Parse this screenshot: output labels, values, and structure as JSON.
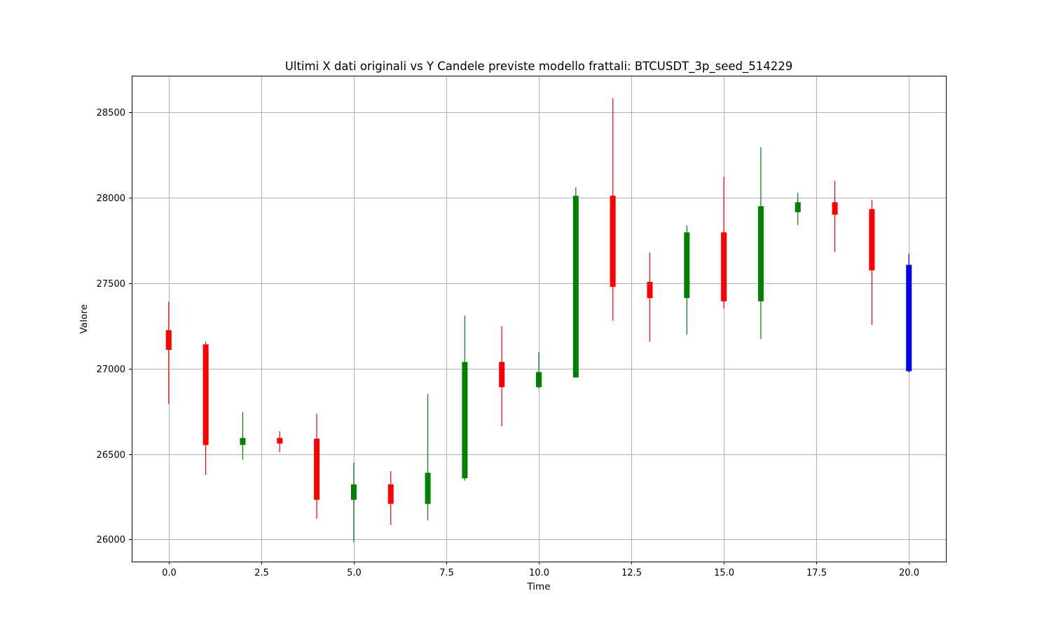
{
  "chart_data": {
    "type": "candlestick",
    "title": "Ultimi X dati originali vs Y Candele previste modello frattali: BTCUSDT_3p_seed_514229",
    "xlabel": "Time",
    "ylabel": "Valore",
    "xlim": [
      -1,
      21
    ],
    "ylim": [
      25870,
      28715
    ],
    "xticks": [
      0.0,
      2.5,
      5.0,
      7.5,
      10.0,
      12.5,
      15.0,
      17.5,
      20.0
    ],
    "xtick_labels": [
      "0.0",
      "2.5",
      "5.0",
      "7.5",
      "10.0",
      "12.5",
      "15.0",
      "17.5",
      "20.0"
    ],
    "yticks": [
      26000,
      26500,
      27000,
      27500,
      28000,
      28500
    ],
    "ytick_labels": [
      "26000",
      "26500",
      "27000",
      "27500",
      "28000",
      "28500"
    ],
    "grid": true,
    "colors": {
      "up": "#008000",
      "down": "#ff0000",
      "predicted": "#0000ff"
    },
    "candles": [
      {
        "x": 0,
        "open": 27225,
        "high": 27392,
        "low": 26793,
        "close": 27110,
        "color": "down"
      },
      {
        "x": 1,
        "open": 27142,
        "high": 27158,
        "low": 26377,
        "close": 26553,
        "color": "down"
      },
      {
        "x": 2,
        "open": 26553,
        "high": 26746,
        "low": 26467,
        "close": 26594,
        "color": "up"
      },
      {
        "x": 3,
        "open": 26594,
        "high": 26633,
        "low": 26510,
        "close": 26561,
        "color": "down"
      },
      {
        "x": 4,
        "open": 26590,
        "high": 26736,
        "low": 26121,
        "close": 26232,
        "color": "down"
      },
      {
        "x": 5,
        "open": 26232,
        "high": 26449,
        "low": 25985,
        "close": 26322,
        "color": "up"
      },
      {
        "x": 6,
        "open": 26322,
        "high": 26400,
        "low": 26084,
        "close": 26208,
        "color": "down"
      },
      {
        "x": 7,
        "open": 26208,
        "high": 26852,
        "low": 26111,
        "close": 26390,
        "color": "up"
      },
      {
        "x": 8,
        "open": 26358,
        "high": 27310,
        "low": 26344,
        "close": 27039,
        "color": "up"
      },
      {
        "x": 9,
        "open": 27039,
        "high": 27248,
        "low": 26662,
        "close": 26891,
        "color": "down"
      },
      {
        "x": 10,
        "open": 26891,
        "high": 27096,
        "low": 26884,
        "close": 26980,
        "color": "up"
      },
      {
        "x": 11,
        "open": 26948,
        "high": 28061,
        "low": 26948,
        "close": 28012,
        "color": "up"
      },
      {
        "x": 12,
        "open": 28012,
        "high": 28583,
        "low": 27280,
        "close": 27479,
        "color": "down"
      },
      {
        "x": 13,
        "open": 27508,
        "high": 27680,
        "low": 27158,
        "close": 27413,
        "color": "down"
      },
      {
        "x": 14,
        "open": 27413,
        "high": 27838,
        "low": 27198,
        "close": 27798,
        "color": "up"
      },
      {
        "x": 15,
        "open": 27798,
        "high": 28122,
        "low": 27352,
        "close": 27394,
        "color": "down"
      },
      {
        "x": 16,
        "open": 27394,
        "high": 28297,
        "low": 27173,
        "close": 27951,
        "color": "up"
      },
      {
        "x": 17,
        "open": 27916,
        "high": 28030,
        "low": 27840,
        "close": 27974,
        "color": "up"
      },
      {
        "x": 18,
        "open": 27974,
        "high": 28100,
        "low": 27683,
        "close": 27901,
        "color": "down"
      },
      {
        "x": 19,
        "open": 27934,
        "high": 27987,
        "low": 27257,
        "close": 27575,
        "color": "down"
      },
      {
        "x": 20,
        "open": 26985,
        "high": 27672,
        "low": 26978,
        "close": 27608,
        "color": "predicted"
      }
    ]
  }
}
